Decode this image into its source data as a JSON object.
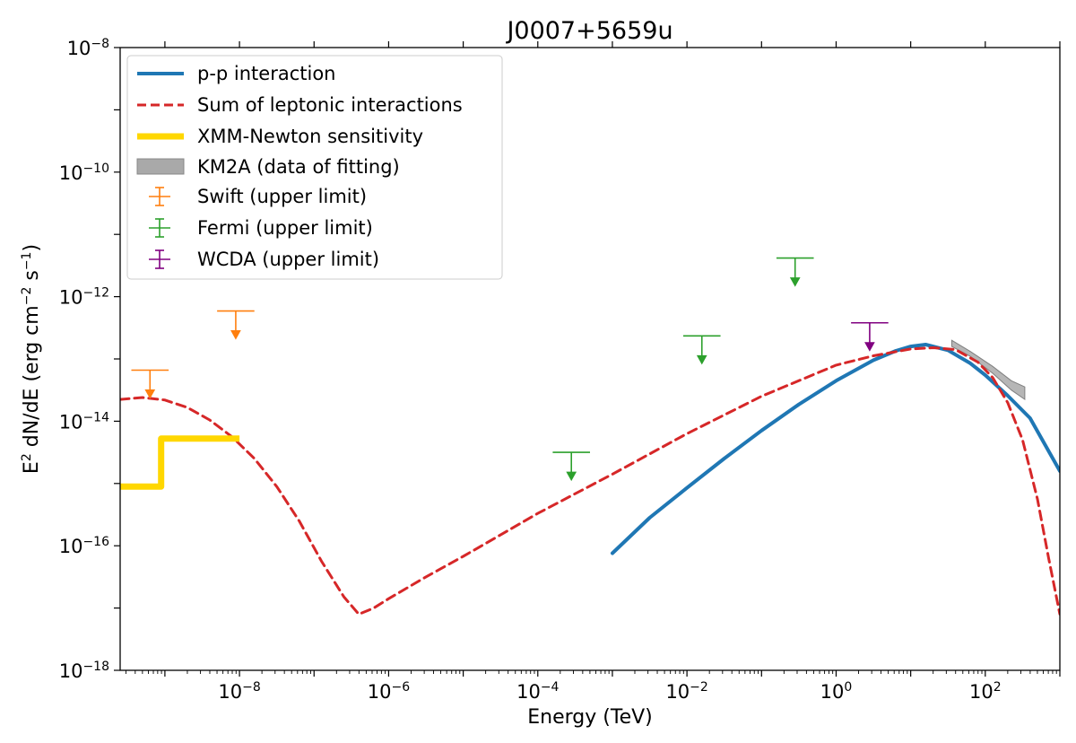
{
  "chart_data": {
    "type": "line",
    "title": "J0007+5659u",
    "xlabel": "Energy (TeV)",
    "ylabel": {
      "main": "E",
      "sup1": "2",
      "mid": " dN/dE (erg cm",
      "sup2": "−2",
      "mid2": " s",
      "sup3": "−1",
      "end": ")"
    },
    "xscale": "log",
    "yscale": "log",
    "xlim_log10": [
      -9.6,
      3.0
    ],
    "ylim_log10": [
      -18,
      -8
    ],
    "xticks": [
      {
        "exp": -8,
        "base": "10",
        "sup": "−8"
      },
      {
        "exp": -6,
        "base": "10",
        "sup": "−6"
      },
      {
        "exp": -4,
        "base": "10",
        "sup": "−4"
      },
      {
        "exp": -2,
        "base": "10",
        "sup": "−2"
      },
      {
        "exp": 0,
        "base": "10",
        "sup": "0"
      },
      {
        "exp": 2,
        "base": "10",
        "sup": "2"
      }
    ],
    "yticks": [
      {
        "exp": -18,
        "base": "10",
        "sup": "−18"
      },
      {
        "exp": -16,
        "base": "10",
        "sup": "−16"
      },
      {
        "exp": -14,
        "base": "10",
        "sup": "−14"
      },
      {
        "exp": -12,
        "base": "10",
        "sup": "−12"
      },
      {
        "exp": -10,
        "base": "10",
        "sup": "−10"
      },
      {
        "exp": -8,
        "base": "10",
        "sup": "−8"
      }
    ],
    "legend_position": "top-left",
    "legend": [
      {
        "label": "p-p interaction",
        "kind": "line",
        "color": "#1f77b4"
      },
      {
        "label": "Sum of leptonic interactions",
        "kind": "dashed",
        "color": "#d62728"
      },
      {
        "label": "XMM-Newton sensitivity",
        "kind": "thick",
        "color": "#ffd700"
      },
      {
        "label": "KM2A (data of fitting)",
        "kind": "band",
        "color": "#a9a9a9"
      },
      {
        "label": "Swift (upper limit)",
        "kind": "errorbar",
        "color": "#ff7f0e"
      },
      {
        "label": "Fermi (upper limit)",
        "kind": "errorbar",
        "color": "#2ca02c"
      },
      {
        "label": "WCDA (upper limit)",
        "kind": "errorbar",
        "color": "#800080"
      }
    ],
    "series": [
      {
        "name": "p-p interaction",
        "color": "#1f77b4",
        "style": "solid",
        "log10_x": [
          -3.0,
          -2.5,
          -2.0,
          -1.5,
          -1.0,
          -0.5,
          0.0,
          0.5,
          0.8,
          1.0,
          1.2,
          1.5,
          1.8,
          2.0,
          2.3,
          2.6,
          3.0
        ],
        "log10_y": [
          -16.12,
          -15.55,
          -15.07,
          -14.6,
          -14.15,
          -13.73,
          -13.35,
          -13.02,
          -12.87,
          -12.8,
          -12.77,
          -12.86,
          -13.07,
          -13.26,
          -13.59,
          -13.95,
          -14.8
        ]
      },
      {
        "name": "Sum of leptonic interactions",
        "color": "#d62728",
        "style": "dashed",
        "log10_x": [
          -9.6,
          -9.3,
          -9.0,
          -8.7,
          -8.4,
          -8.1,
          -7.8,
          -7.5,
          -7.2,
          -6.9,
          -6.6,
          -6.4,
          -6.2,
          -6.0,
          -5.5,
          -5.0,
          -4.0,
          -3.0,
          -2.0,
          -1.0,
          0.0,
          0.5,
          1.0,
          1.3,
          1.6,
          1.9,
          2.1,
          2.3,
          2.5,
          2.7,
          2.85,
          3.0
        ],
        "log10_y": [
          -13.65,
          -13.62,
          -13.66,
          -13.78,
          -13.98,
          -14.25,
          -14.6,
          -15.05,
          -15.6,
          -16.25,
          -16.82,
          -17.1,
          -17.0,
          -16.85,
          -16.5,
          -16.17,
          -15.48,
          -14.85,
          -14.2,
          -13.6,
          -13.1,
          -12.95,
          -12.84,
          -12.82,
          -12.85,
          -13.05,
          -13.3,
          -13.7,
          -14.3,
          -15.25,
          -16.2,
          -17.1
        ]
      },
      {
        "name": "XMM-Newton sensitivity",
        "color": "#ffd700",
        "style": "thick",
        "log10_x": [
          -9.6,
          -9.05,
          -9.05,
          -8.0
        ],
        "log10_y": [
          -15.05,
          -15.05,
          -14.28,
          -14.28
        ]
      }
    ],
    "band": {
      "name": "KM2A (data of fitting)",
      "color": "#a9a9a9",
      "log10_x": [
        1.55,
        1.8,
        2.1,
        2.35,
        2.53
      ],
      "log10_y_low": [
        -12.8,
        -12.96,
        -13.23,
        -13.5,
        -13.65
      ],
      "log10_y_high": [
        -12.7,
        -12.88,
        -13.12,
        -13.35,
        -13.45
      ]
    },
    "upper_limits": [
      {
        "name": "Swift (upper limit)",
        "color": "#ff7f0e",
        "points": [
          {
            "log10_x": -9.2,
            "log10_y": -13.18,
            "log10_xerr": 0.25
          },
          {
            "log10_x": -8.05,
            "log10_y": -12.23,
            "log10_xerr": 0.25
          }
        ]
      },
      {
        "name": "Fermi (upper limit)",
        "color": "#2ca02c",
        "points": [
          {
            "log10_x": -3.55,
            "log10_y": -14.5,
            "log10_xerr": 0.25
          },
          {
            "log10_x": -1.8,
            "log10_y": -12.63,
            "log10_xerr": 0.25
          },
          {
            "log10_x": -0.55,
            "log10_y": -11.38,
            "log10_xerr": 0.25
          }
        ]
      },
      {
        "name": "WCDA (upper limit)",
        "color": "#800080",
        "points": [
          {
            "log10_x": 0.45,
            "log10_y": -12.42,
            "log10_xerr": 0.25
          }
        ]
      }
    ]
  }
}
